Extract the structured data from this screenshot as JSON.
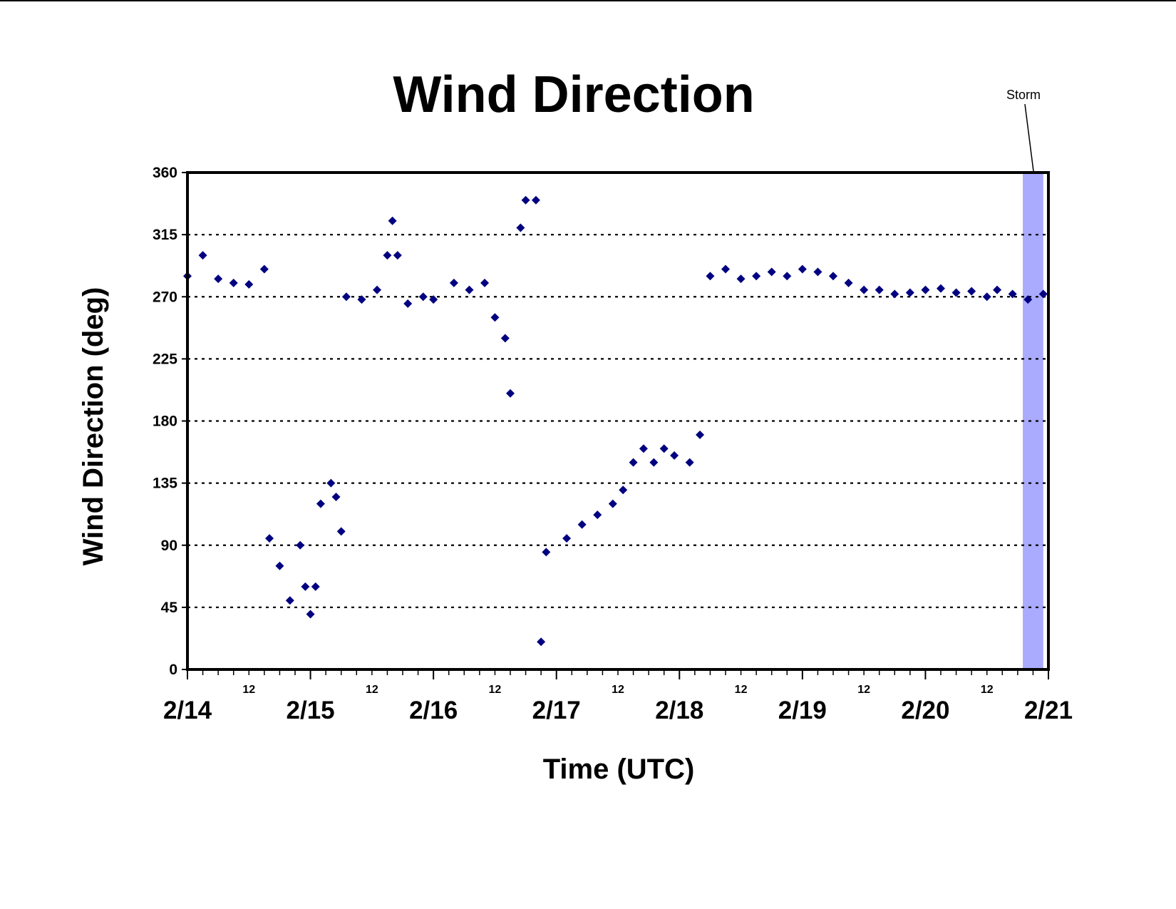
{
  "chart_data": {
    "type": "scatter",
    "title": "Wind Direction",
    "xlabel": "Time (UTC)",
    "ylabel": "Wind Direction (deg)",
    "ylim": [
      0,
      360
    ],
    "xlim": [
      "2/14 00:00",
      "2/21 00:00"
    ],
    "y_ticks": [
      "0",
      "45",
      "90",
      "135",
      "180",
      "225",
      "270",
      "315",
      "360"
    ],
    "x_ticks": [
      "2/14",
      "2/15",
      "2/16",
      "2/17",
      "2/18",
      "2/19",
      "2/20",
      "2/21"
    ],
    "x_minor_label": "12",
    "grid": "horizontal dotted",
    "marker": "diamond",
    "colors": {
      "points": "#000080",
      "storm_band": "#aaaaff",
      "grid": "#000000",
      "frame": "#000000"
    },
    "storm": {
      "label": "Storm",
      "start": "2/20 19:00",
      "end": "2/20 23:00"
    },
    "series": [
      {
        "points": [
          [
            "2/14 00:00",
            285
          ],
          [
            "2/14 03:00",
            300
          ],
          [
            "2/14 06:00",
            283
          ],
          [
            "2/14 09:00",
            280
          ],
          [
            "2/14 12:00",
            279
          ],
          [
            "2/14 15:00",
            290
          ],
          [
            "2/14 16:00",
            95
          ],
          [
            "2/14 18:00",
            75
          ],
          [
            "2/14 20:00",
            50
          ],
          [
            "2/14 22:00",
            90
          ],
          [
            "2/14 23:00",
            60
          ],
          [
            "2/15 00:00",
            40
          ],
          [
            "2/15 01:00",
            60
          ],
          [
            "2/15 02:00",
            120
          ],
          [
            "2/15 04:00",
            135
          ],
          [
            "2/15 05:00",
            125
          ],
          [
            "2/15 06:00",
            100
          ],
          [
            "2/15 07:00",
            270
          ],
          [
            "2/15 10:00",
            268
          ],
          [
            "2/15 13:00",
            275
          ],
          [
            "2/15 15:00",
            300
          ],
          [
            "2/15 16:00",
            325
          ],
          [
            "2/15 17:00",
            300
          ],
          [
            "2/15 19:00",
            265
          ],
          [
            "2/15 22:00",
            270
          ],
          [
            "2/16 00:00",
            268
          ],
          [
            "2/16 04:00",
            280
          ],
          [
            "2/16 07:00",
            275
          ],
          [
            "2/16 10:00",
            280
          ],
          [
            "2/16 12:00",
            255
          ],
          [
            "2/16 14:00",
            240
          ],
          [
            "2/16 15:00",
            200
          ],
          [
            "2/16 17:00",
            320
          ],
          [
            "2/16 18:00",
            340
          ],
          [
            "2/16 20:00",
            340
          ],
          [
            "2/16 21:00",
            20
          ],
          [
            "2/16 22:00",
            85
          ],
          [
            "2/17 02:00",
            95
          ],
          [
            "2/17 05:00",
            105
          ],
          [
            "2/17 08:00",
            112
          ],
          [
            "2/17 11:00",
            120
          ],
          [
            "2/17 13:00",
            130
          ],
          [
            "2/17 15:00",
            150
          ],
          [
            "2/17 17:00",
            160
          ],
          [
            "2/17 19:00",
            150
          ],
          [
            "2/17 21:00",
            160
          ],
          [
            "2/17 23:00",
            155
          ],
          [
            "2/18 02:00",
            150
          ],
          [
            "2/18 04:00",
            170
          ],
          [
            "2/18 06:00",
            285
          ],
          [
            "2/18 09:00",
            290
          ],
          [
            "2/18 12:00",
            283
          ],
          [
            "2/18 15:00",
            285
          ],
          [
            "2/18 18:00",
            288
          ],
          [
            "2/18 21:00",
            285
          ],
          [
            "2/19 00:00",
            290
          ],
          [
            "2/19 03:00",
            288
          ],
          [
            "2/19 06:00",
            285
          ],
          [
            "2/19 09:00",
            280
          ],
          [
            "2/19 12:00",
            275
          ],
          [
            "2/19 15:00",
            275
          ],
          [
            "2/19 18:00",
            272
          ],
          [
            "2/19 21:00",
            273
          ],
          [
            "2/20 00:00",
            275
          ],
          [
            "2/20 03:00",
            276
          ],
          [
            "2/20 06:00",
            273
          ],
          [
            "2/20 09:00",
            274
          ],
          [
            "2/20 12:00",
            270
          ],
          [
            "2/20 14:00",
            275
          ],
          [
            "2/20 17:00",
            272
          ],
          [
            "2/20 20:00",
            268
          ],
          [
            "2/20 23:00",
            272
          ]
        ]
      }
    ]
  }
}
